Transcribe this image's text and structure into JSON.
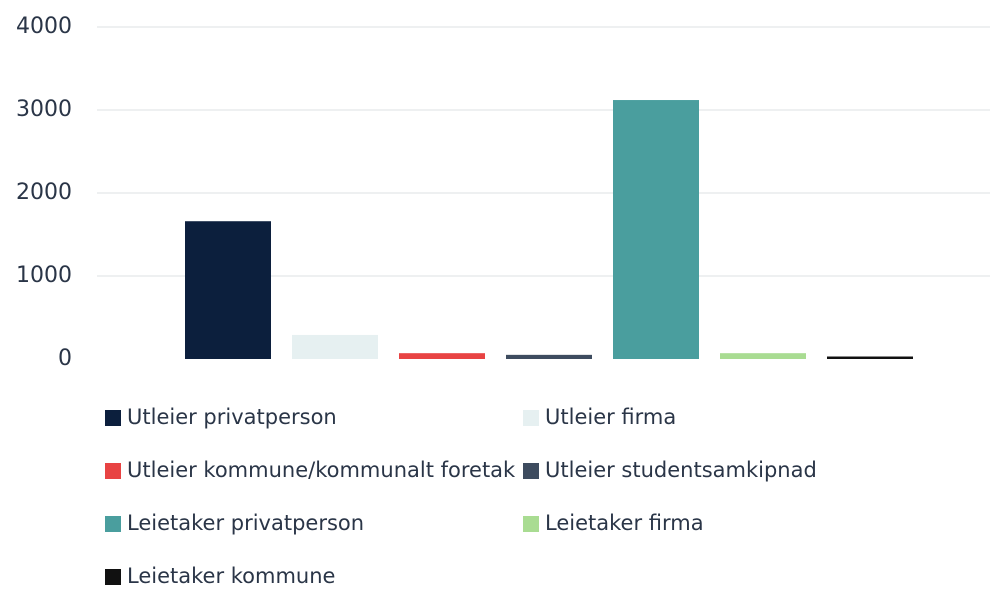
{
  "chart_data": {
    "type": "bar",
    "series": [
      {
        "name": "Utleier privatperson",
        "color": "#0c1f3d",
        "values": [
          1660
        ]
      },
      {
        "name": "Utleier firma",
        "color": "#e6f0f1",
        "values": [
          290
        ]
      },
      {
        "name": "Utleier kommune/kommunalt foretak",
        "color": "#e84343",
        "values": [
          70
        ]
      },
      {
        "name": "Utleier studentsamkipnad",
        "color": "#3e4c5f",
        "values": [
          50
        ]
      },
      {
        "name": "Leietaker privatperson",
        "color": "#4a9e9e",
        "values": [
          3120
        ]
      },
      {
        "name": "Leietaker firma",
        "color": "#a9dc92",
        "values": [
          70
        ]
      },
      {
        "name": "Leietaker kommune",
        "color": "#111111",
        "values": [
          30
        ]
      }
    ],
    "ylim": [
      0,
      4000
    ],
    "yticks": [
      0,
      1000,
      2000,
      3000,
      4000
    ],
    "grid": true
  }
}
